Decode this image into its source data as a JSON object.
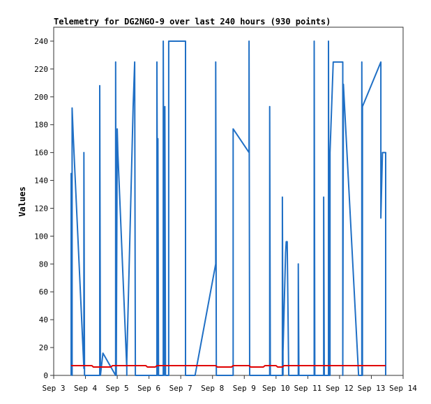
{
  "chart_data": {
    "type": "line",
    "title": "Telemetry for DG2NGO-9 over last 240 hours (930 points)",
    "xlabel": "",
    "ylabel": "Values",
    "ylim": [
      0,
      250
    ],
    "xlim": [
      "Sep 3",
      "Sep 14"
    ],
    "y_ticks": [
      0,
      20,
      40,
      60,
      80,
      100,
      120,
      140,
      160,
      180,
      200,
      220,
      240
    ],
    "x_ticks": [
      "Sep 3",
      "Sep 4",
      "Sep 5",
      "Sep 6",
      "Sep 7",
      "Sep 8",
      "Sep 9",
      "Sep 10",
      "Sep 11",
      "Sep 12",
      "Sep 13",
      "Sep 14"
    ],
    "grid": false,
    "legend": "none",
    "series": [
      {
        "color": "#1f6fc5",
        "points": [
          [
            3.55,
            0
          ],
          [
            3.55,
            145
          ],
          [
            3.58,
            0
          ],
          [
            3.58,
            192
          ],
          [
            3.62,
            170
          ],
          [
            3.95,
            5
          ],
          [
            3.95,
            160
          ],
          [
            3.97,
            0
          ],
          [
            4.45,
            0
          ],
          [
            4.45,
            208
          ],
          [
            4.47,
            0
          ],
          [
            4.55,
            16
          ],
          [
            4.95,
            0
          ],
          [
            4.95,
            225
          ],
          [
            4.97,
            0
          ],
          [
            5.0,
            177
          ],
          [
            5.02,
            160
          ],
          [
            5.3,
            5
          ],
          [
            5.3,
            0
          ],
          [
            5.3,
            10
          ],
          [
            5.5,
            193
          ],
          [
            5.55,
            225
          ],
          [
            5.57,
            0
          ],
          [
            6.25,
            0
          ],
          [
            6.25,
            225
          ],
          [
            6.28,
            0
          ],
          [
            6.28,
            170
          ],
          [
            6.3,
            0
          ],
          [
            6.45,
            0
          ],
          [
            6.45,
            240
          ],
          [
            6.48,
            0
          ],
          [
            6.48,
            120
          ],
          [
            6.5,
            193
          ],
          [
            6.52,
            0
          ],
          [
            6.62,
            0
          ],
          [
            6.62,
            240
          ],
          [
            7.15,
            240
          ],
          [
            7.15,
            0
          ],
          [
            7.45,
            0
          ],
          [
            8.1,
            80
          ],
          [
            8.1,
            225
          ],
          [
            8.12,
            0
          ],
          [
            8.65,
            0
          ],
          [
            8.65,
            177
          ],
          [
            9.15,
            160
          ],
          [
            9.15,
            240
          ],
          [
            9.17,
            0
          ],
          [
            9.8,
            0
          ],
          [
            9.8,
            193
          ],
          [
            9.82,
            0
          ],
          [
            10.2,
            0
          ],
          [
            10.2,
            128
          ],
          [
            10.22,
            0
          ],
          [
            10.22,
            17
          ],
          [
            10.3,
            88
          ],
          [
            10.32,
            96
          ],
          [
            10.35,
            96
          ],
          [
            10.4,
            0
          ],
          [
            10.7,
            0
          ],
          [
            10.7,
            80
          ],
          [
            10.72,
            0
          ],
          [
            11.2,
            0
          ],
          [
            11.2,
            240
          ],
          [
            11.22,
            0
          ],
          [
            11.5,
            0
          ],
          [
            11.5,
            128
          ],
          [
            11.52,
            0
          ],
          [
            11.65,
            0
          ],
          [
            11.65,
            240
          ],
          [
            11.67,
            0
          ],
          [
            11.7,
            0
          ],
          [
            11.7,
            160
          ],
          [
            11.8,
            225
          ],
          [
            12.1,
            225
          ],
          [
            12.1,
            0
          ],
          [
            12.12,
            209
          ],
          [
            12.6,
            0
          ],
          [
            12.7,
            0
          ],
          [
            12.7,
            225
          ],
          [
            12.72,
            0
          ],
          [
            12.72,
            193
          ],
          [
            13.3,
            225
          ],
          [
            13.3,
            113
          ],
          [
            13.35,
            160
          ],
          [
            13.45,
            160
          ],
          [
            13.45,
            80
          ],
          [
            13.45,
            0
          ]
        ]
      },
      {
        "color": "#e00000",
        "points": [
          [
            3.55,
            7
          ],
          [
            4.2,
            7
          ],
          [
            4.25,
            6
          ],
          [
            4.8,
            6
          ],
          [
            4.85,
            7
          ],
          [
            5.9,
            7
          ],
          [
            5.95,
            6
          ],
          [
            6.2,
            6
          ],
          [
            6.25,
            7
          ],
          [
            8.1,
            7
          ],
          [
            8.15,
            6
          ],
          [
            8.6,
            6
          ],
          [
            8.65,
            7
          ],
          [
            9.15,
            7
          ],
          [
            9.2,
            6
          ],
          [
            9.6,
            6
          ],
          [
            9.65,
            7
          ],
          [
            10.0,
            7
          ],
          [
            10.05,
            6
          ],
          [
            10.2,
            6
          ],
          [
            10.25,
            7
          ],
          [
            13.45,
            7
          ]
        ]
      }
    ]
  }
}
